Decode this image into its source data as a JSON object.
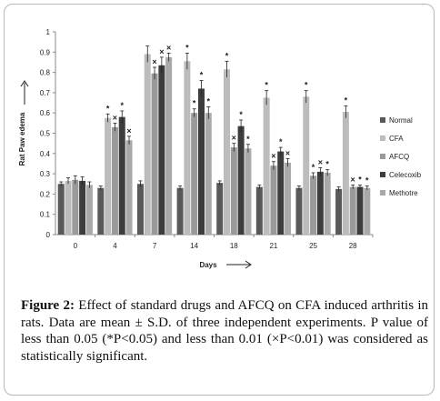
{
  "chart_data": {
    "type": "bar",
    "title": "",
    "ylabel": "Rat Paw edema",
    "xlabel": "Days",
    "ylim": [
      0,
      1
    ],
    "yticks": [
      "0",
      "0.1",
      "0.2",
      "0.3",
      "0.4",
      "0.5",
      "0.6",
      "0.7",
      "0.8",
      "0.9",
      "1"
    ],
    "categories": [
      "0",
      "4",
      "7",
      "14",
      "18",
      "21",
      "25",
      "28"
    ],
    "legend_position": "right",
    "series": [
      {
        "name": "Normal",
        "color": "#595959",
        "values": [
          0.25,
          0.23,
          0.25,
          0.23,
          0.255,
          0.235,
          0.23,
          0.225
        ],
        "errors": [
          0.01,
          0.01,
          0.015,
          0.01,
          0.01,
          0.01,
          0.01,
          0.01
        ],
        "marks": [
          "",
          "",
          "",
          "",
          "",
          "",
          "",
          ""
        ]
      },
      {
        "name": "CFA",
        "color": "#bcbcbc",
        "values": [
          0.265,
          0.575,
          0.89,
          0.855,
          0.815,
          0.675,
          0.68,
          0.605
        ],
        "errors": [
          0.015,
          0.02,
          0.04,
          0.04,
          0.04,
          0.035,
          0.03,
          0.03
        ],
        "marks": [
          "",
          "*",
          "",
          "*",
          "*",
          "*",
          "*",
          "*"
        ]
      },
      {
        "name": "AFCQ",
        "color": "#9a9a9a",
        "values": [
          0.27,
          0.53,
          0.795,
          0.6,
          0.43,
          0.34,
          0.29,
          0.235
        ],
        "errors": [
          0.02,
          0.02,
          0.03,
          0.02,
          0.02,
          0.02,
          0.015,
          0.01
        ],
        "marks": [
          "",
          "×",
          "×",
          "*",
          "×",
          "×",
          "*",
          "×"
        ]
      },
      {
        "name": "Celecoxib",
        "color": "#3d3d3d",
        "values": [
          0.265,
          0.58,
          0.835,
          0.72,
          0.535,
          0.41,
          0.31,
          0.235
        ],
        "errors": [
          0.02,
          0.03,
          0.04,
          0.04,
          0.03,
          0.02,
          0.02,
          0.01
        ],
        "marks": [
          "",
          "*",
          "×",
          "*",
          "*",
          "*",
          "×",
          "*"
        ]
      },
      {
        "name": "Methotre",
        "color": "#a9a9a9",
        "values": [
          0.245,
          0.465,
          0.875,
          0.6,
          0.425,
          0.355,
          0.305,
          0.23
        ],
        "errors": [
          0.015,
          0.02,
          0.02,
          0.03,
          0.02,
          0.02,
          0.015,
          0.01
        ],
        "marks": [
          "",
          "×",
          "×",
          "*",
          "*",
          "×",
          "*",
          "*"
        ]
      }
    ]
  },
  "caption": {
    "label": "Figure 2:",
    "text": " Effect of standard drugs and AFCQ on CFA induced arthritis in rats. Data are mean ± S.D. of three independent experiments. P value of less than 0.05 (*P<0.05) and less than 0.01 (×P<0.01) was considered as statistically significant."
  }
}
